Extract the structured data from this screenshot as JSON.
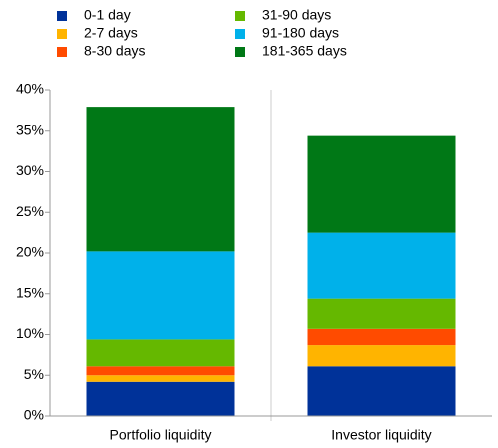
{
  "chart_data": {
    "type": "stacked_bar",
    "categories": [
      "Portfolio liquidity",
      "Investor liquidity"
    ],
    "series": [
      {
        "name": "0-1 day",
        "color": "#003299",
        "values": [
          4.2,
          6.1
        ]
      },
      {
        "name": "2-7 days",
        "color": "#ffb400",
        "values": [
          0.8,
          2.6
        ]
      },
      {
        "name": "8-30 days",
        "color": "#ff4b00",
        "values": [
          1.1,
          2.0
        ]
      },
      {
        "name": "31-90 days",
        "color": "#65b800",
        "values": [
          3.3,
          3.7
        ]
      },
      {
        "name": "91-180 days",
        "color": "#00b1ea",
        "values": [
          10.8,
          8.1
        ]
      },
      {
        "name": "181-365 days",
        "color": "#007816",
        "values": [
          17.7,
          11.9
        ]
      }
    ],
    "ylim": [
      0,
      40
    ],
    "yticks": [
      {
        "value": 0,
        "label": "0%"
      },
      {
        "value": 5,
        "label": "5%"
      },
      {
        "value": 10,
        "label": "10%"
      },
      {
        "value": 15,
        "label": "15%"
      },
      {
        "value": 20,
        "label": "20%"
      },
      {
        "value": 25,
        "label": "25%"
      },
      {
        "value": 30,
        "label": "30%"
      },
      {
        "value": 35,
        "label": "35%"
      },
      {
        "value": 40,
        "label": "40%"
      }
    ]
  }
}
